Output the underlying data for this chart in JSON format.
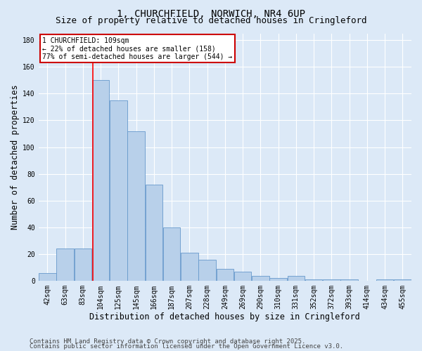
{
  "title_line1": "1, CHURCHFIELD, NORWICH, NR4 6UP",
  "title_line2": "Size of property relative to detached houses in Cringleford",
  "xlabel": "Distribution of detached houses by size in Cringleford",
  "ylabel": "Number of detached properties",
  "bar_labels": [
    "42sqm",
    "63sqm",
    "83sqm",
    "104sqm",
    "125sqm",
    "145sqm",
    "166sqm",
    "187sqm",
    "207sqm",
    "228sqm",
    "249sqm",
    "269sqm",
    "290sqm",
    "310sqm",
    "331sqm",
    "352sqm",
    "372sqm",
    "393sqm",
    "414sqm",
    "434sqm",
    "455sqm"
  ],
  "bar_values": [
    6,
    24,
    24,
    150,
    135,
    112,
    72,
    40,
    21,
    16,
    9,
    7,
    4,
    2,
    4,
    1,
    1,
    1,
    0,
    1,
    1
  ],
  "bar_color": "#b8d0ea",
  "bar_edge_color": "#6699cc",
  "red_line_x": 3.5,
  "annotation_text": "1 CHURCHFIELD: 109sqm\n← 22% of detached houses are smaller (158)\n77% of semi-detached houses are larger (544) →",
  "annotation_box_color": "#ffffff",
  "annotation_box_edge": "#cc0000",
  "background_color": "#dce9f7",
  "grid_color": "#ffffff",
  "footer_line1": "Contains HM Land Registry data © Crown copyright and database right 2025.",
  "footer_line2": "Contains public sector information licensed under the Open Government Licence v3.0.",
  "ylim": [
    0,
    185
  ],
  "yticks": [
    0,
    20,
    40,
    60,
    80,
    100,
    120,
    140,
    160,
    180
  ],
  "title_fontsize": 10,
  "subtitle_fontsize": 9,
  "axis_label_fontsize": 8.5,
  "tick_fontsize": 7,
  "footer_fontsize": 6.5
}
